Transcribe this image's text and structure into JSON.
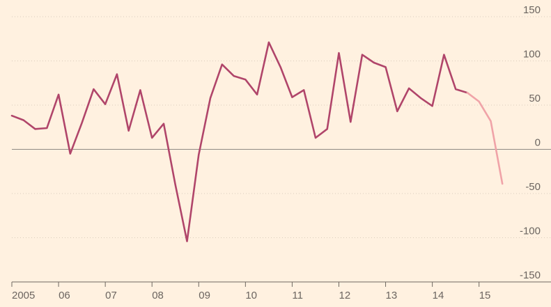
{
  "chart_data": {
    "type": "line",
    "title": "",
    "xlabel": "",
    "ylabel": "",
    "ylim": [
      -150,
      150
    ],
    "yticks": [
      150,
      100,
      50,
      0,
      -50,
      -100,
      -150
    ],
    "xlim": [
      2005.0,
      2015.75
    ],
    "xticks": [
      {
        "value": 2005,
        "label": "2005"
      },
      {
        "value": 2006,
        "label": "06"
      },
      {
        "value": 2007,
        "label": "07"
      },
      {
        "value": 2008,
        "label": "08"
      },
      {
        "value": 2009,
        "label": "09"
      },
      {
        "value": 2010,
        "label": "10"
      },
      {
        "value": 2011,
        "label": "11"
      },
      {
        "value": 2012,
        "label": "12"
      },
      {
        "value": 2013,
        "label": "13"
      },
      {
        "value": 2014,
        "label": "14"
      },
      {
        "value": 2015,
        "label": "15"
      }
    ],
    "grid": true,
    "colors": {
      "actual": "#b0456a",
      "forecast": "#f0a3a8",
      "background": "#fff1e0"
    },
    "series": [
      {
        "style": "actual",
        "x": [
          2005.0,
          2005.25,
          2005.5,
          2005.75,
          2006.0,
          2006.25,
          2006.5,
          2006.75,
          2007.0,
          2007.25,
          2007.5,
          2007.75,
          2008.0,
          2008.25,
          2008.5,
          2008.75,
          2009.0,
          2009.25,
          2009.5,
          2009.75,
          2010.0,
          2010.25,
          2010.5,
          2010.75,
          2011.0,
          2011.25,
          2011.5,
          2011.75,
          2012.0,
          2012.25,
          2012.5,
          2012.75,
          2013.0,
          2013.25,
          2013.5,
          2013.75,
          2014.0,
          2014.25,
          2014.5,
          2014.75
        ],
        "values": [
          38,
          33,
          23,
          24,
          62,
          -5,
          30,
          68,
          51,
          85,
          21,
          67,
          13,
          29,
          -40,
          -104,
          -6,
          58,
          96,
          83,
          79,
          62,
          121,
          93,
          59,
          67,
          13,
          23,
          109,
          31,
          107,
          98,
          93,
          43,
          69,
          58,
          49,
          107,
          68,
          64
        ]
      },
      {
        "style": "forecast",
        "x": [
          2014.75,
          2015.0,
          2015.25,
          2015.5
        ],
        "values": [
          64,
          54,
          32,
          -39
        ]
      }
    ]
  }
}
